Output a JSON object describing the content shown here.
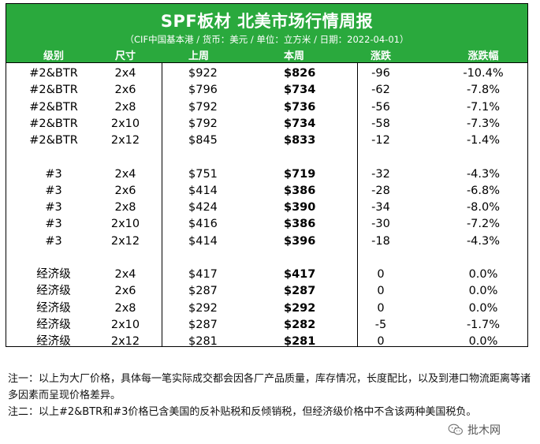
{
  "report": {
    "title": "SPF板材 北美市场行情周报",
    "subtitle": "（CIF中国基本港 / 货币：美元 / 单位：立方米 / 日期：2022-04-01）",
    "header_bg": "#2aa93d",
    "columns": [
      "级别",
      "尺寸",
      "上周",
      "本周",
      "涨跌",
      "涨跌幅"
    ],
    "rows": [
      {
        "grade": "#2&BTR",
        "size": "2x4",
        "last": "$922",
        "this": "$826",
        "chg": "-96",
        "pct": "-10.4%"
      },
      {
        "grade": "#2&BTR",
        "size": "2x6",
        "last": "$796",
        "this": "$734",
        "chg": "-62",
        "pct": "-7.8%"
      },
      {
        "grade": "#2&BTR",
        "size": "2x8",
        "last": "$792",
        "this": "$736",
        "chg": "-56",
        "pct": "-7.1%"
      },
      {
        "grade": "#2&BTR",
        "size": "2x10",
        "last": "$792",
        "this": "$734",
        "chg": "-58",
        "pct": "-7.3%"
      },
      {
        "grade": "#2&BTR",
        "size": "2x12",
        "last": "$845",
        "this": "$833",
        "chg": "-12",
        "pct": "-1.4%"
      },
      {
        "grade": "#3",
        "size": "2x4",
        "last": "$751",
        "this": "$719",
        "chg": "-32",
        "pct": "-4.3%"
      },
      {
        "grade": "#3",
        "size": "2x6",
        "last": "$414",
        "this": "$386",
        "chg": "-28",
        "pct": "-6.8%"
      },
      {
        "grade": "#3",
        "size": "2x8",
        "last": "$424",
        "this": "$390",
        "chg": "-34",
        "pct": "-8.0%"
      },
      {
        "grade": "#3",
        "size": "2x10",
        "last": "$416",
        "this": "$386",
        "chg": "-30",
        "pct": "-7.2%"
      },
      {
        "grade": "#3",
        "size": "2x12",
        "last": "$414",
        "this": "$396",
        "chg": "-18",
        "pct": "-4.3%"
      },
      {
        "grade": "经济级",
        "size": "2x4",
        "last": "$417",
        "this": "$417",
        "chg": "0",
        "pct": "0.0%"
      },
      {
        "grade": "经济级",
        "size": "2x6",
        "last": "$287",
        "this": "$287",
        "chg": "0",
        "pct": "0.0%"
      },
      {
        "grade": "经济级",
        "size": "2x8",
        "last": "$292",
        "this": "$292",
        "chg": "0",
        "pct": "0.0%"
      },
      {
        "grade": "经济级",
        "size": "2x10",
        "last": "$287",
        "this": "$282",
        "chg": "-5",
        "pct": "-1.7%"
      },
      {
        "grade": "经济级",
        "size": "2x12",
        "last": "$281",
        "this": "$281",
        "chg": "0",
        "pct": "0.0%"
      }
    ]
  },
  "notes": {
    "note1": "注一：以上为大厂价格，具体每一笔实际成交都会因各厂产品质量，库存情况，长度配比，以及到港口物流距离等诸多因素而呈现价格差异。",
    "note2": "注二：以上#2&BTR和#3价格已含美国的反补贴税和反倾销税，但经济级价格中不含该两种美国税负。"
  },
  "watermark": {
    "label": "批木网",
    "icon": "wechat-icon"
  }
}
